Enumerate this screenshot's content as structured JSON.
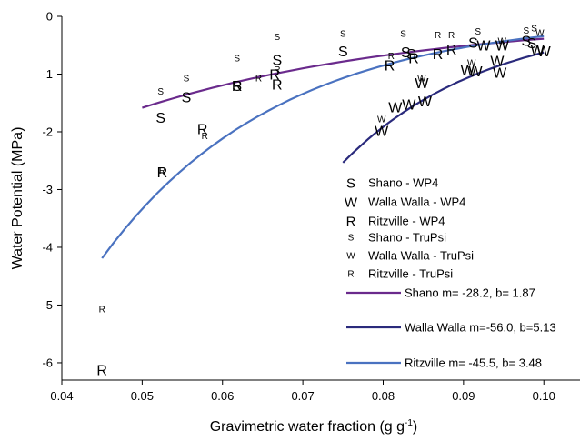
{
  "chart_data": {
    "type": "scatter",
    "xlabel": "Gravimetric water fraction (g g",
    "xlabel_sup": "-1",
    "xlabel_tail": ")",
    "ylabel": "Water Potential (MPa)",
    "xlim": [
      0.04,
      0.1045
    ],
    "ylim": [
      -6.3,
      0
    ],
    "xticks": [
      0.04,
      0.05,
      0.06,
      0.07,
      0.08,
      0.09,
      0.1
    ],
    "xtick_labels": [
      "0.04",
      "0.05",
      "0.06",
      "0.07",
      "0.08",
      "0.09",
      "0.10"
    ],
    "yticks": [
      0,
      -1,
      -2,
      -3,
      -4,
      -5,
      -6
    ],
    "ytick_labels": [
      "0",
      "-1",
      "-2",
      "-3",
      "-4",
      "-5",
      "-6"
    ],
    "grid": false,
    "legend_position": "lower-right",
    "series": [
      {
        "name": "Shano - WP4",
        "marker": "S",
        "size": "large",
        "color": "#000000",
        "points": [
          [
            0.0523,
            -1.75
          ],
          [
            0.0555,
            -1.4
          ],
          [
            0.0618,
            -1.2
          ],
          [
            0.0668,
            -0.75
          ],
          [
            0.075,
            -0.6
          ],
          [
            0.0828,
            -0.62
          ],
          [
            0.0835,
            -0.65
          ],
          [
            0.0912,
            -0.45
          ],
          [
            0.0978,
            -0.42
          ],
          [
            0.0985,
            -0.46
          ]
        ]
      },
      {
        "name": "Walla Walla - WP4",
        "marker": "W",
        "size": "large",
        "color": "#000000",
        "points": [
          [
            0.0798,
            -1.98
          ],
          [
            0.0815,
            -1.57
          ],
          [
            0.0832,
            -1.52
          ],
          [
            0.0848,
            -1.15
          ],
          [
            0.0852,
            -1.47
          ],
          [
            0.0905,
            -0.93
          ],
          [
            0.0915,
            -0.95
          ],
          [
            0.0925,
            -0.5
          ],
          [
            0.0942,
            -0.77
          ],
          [
            0.0945,
            -0.97
          ],
          [
            0.0948,
            -0.5
          ],
          [
            0.0992,
            -0.58
          ],
          [
            0.1,
            -0.6
          ]
        ]
      },
      {
        "name": "Ritzville - WP4",
        "marker": "R",
        "size": "large",
        "color": "#000000",
        "points": [
          [
            0.045,
            -6.12
          ],
          [
            0.0525,
            -2.7
          ],
          [
            0.0575,
            -1.95
          ],
          [
            0.0618,
            -1.2
          ],
          [
            0.0665,
            -1.0
          ],
          [
            0.0668,
            -1.18
          ],
          [
            0.0808,
            -0.85
          ],
          [
            0.0838,
            -0.72
          ],
          [
            0.0868,
            -0.65
          ],
          [
            0.0885,
            -0.57
          ]
        ]
      },
      {
        "name": "Shano - TruPsi",
        "marker": "S",
        "size": "small",
        "color": "#000000",
        "points": [
          [
            0.0523,
            -1.3
          ],
          [
            0.0555,
            -1.07
          ],
          [
            0.0618,
            -0.72
          ],
          [
            0.0668,
            -0.35
          ],
          [
            0.075,
            -0.3
          ],
          [
            0.0825,
            -0.3
          ],
          [
            0.0918,
            -0.26
          ],
          [
            0.0978,
            -0.24
          ],
          [
            0.0988,
            -0.2
          ]
        ]
      },
      {
        "name": "Walla Walla - TruPsi",
        "marker": "W",
        "size": "small",
        "color": "#000000",
        "points": [
          [
            0.0798,
            -1.78
          ],
          [
            0.0848,
            -1.07
          ],
          [
            0.091,
            -0.8
          ],
          [
            0.0948,
            -0.42
          ],
          [
            0.0995,
            -0.28
          ]
        ]
      },
      {
        "name": "Ritzville - TruPsi",
        "marker": "R",
        "size": "small",
        "color": "#000000",
        "points": [
          [
            0.045,
            -5.07
          ],
          [
            0.0525,
            -2.67
          ],
          [
            0.0578,
            -2.07
          ],
          [
            0.0645,
            -1.07
          ],
          [
            0.0668,
            -0.92
          ],
          [
            0.081,
            -0.68
          ],
          [
            0.0868,
            -0.32
          ],
          [
            0.0885,
            -0.32
          ]
        ]
      }
    ],
    "fit_lines": [
      {
        "name": "Shano m= -28.2, b= 1.87",
        "color": "#6a2a8c",
        "m": -28.2,
        "b": 1.87,
        "x_range": [
          0.05,
          0.1
        ]
      },
      {
        "name": "Walla Walla m=-56.0, b=5.13",
        "color": "#2a2a7c",
        "m": -56.0,
        "b": 5.13,
        "x_range": [
          0.075,
          0.1
        ]
      },
      {
        "name": "Ritzville m= -45.5, b= 3.48",
        "color": "#4a72c0",
        "m": -45.5,
        "b": 3.48,
        "x_range": [
          0.045,
          0.1
        ]
      }
    ]
  }
}
